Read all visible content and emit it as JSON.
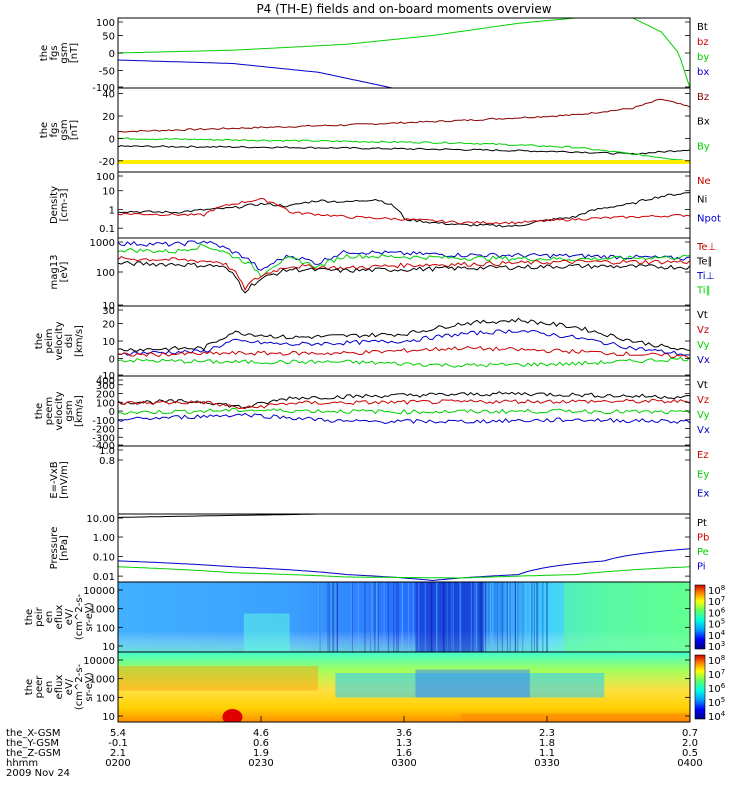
{
  "title": "P4 (TH-E) fields and on-board moments overview",
  "date": "2009 Nov 24",
  "x_axis": {
    "rows": [
      {
        "name": "the_X-GSM",
        "values": [
          "5.4",
          "4.6",
          "3.6",
          "2.3",
          "0.7"
        ]
      },
      {
        "name": "the_Y-GSM",
        "values": [
          "-0.1",
          "0.6",
          "1.3",
          "1.8",
          "2.0"
        ]
      },
      {
        "name": "the_Z-GSM",
        "values": [
          "2.1",
          "1.9",
          "1.6",
          "1.1",
          "0.5"
        ]
      },
      {
        "name": "hhmm",
        "values": [
          "0200",
          "0230",
          "0300",
          "0330",
          "0400"
        ]
      }
    ]
  },
  "colors": {
    "black": "#000000",
    "red": "#cc0000",
    "green": "#00d000",
    "blue": "#0000cc",
    "darkred": "#8b0000",
    "yellow": "#ffee00"
  },
  "chart_data": [
    {
      "type": "line",
      "ylabel": [
        "the",
        "fgs",
        "gsm",
        "[nT]"
      ],
      "ylim": [
        -100,
        100
      ],
      "yticks": [
        "100",
        "50",
        "0",
        "-50",
        "-100"
      ],
      "legend": [
        "Bt",
        "bz",
        "by",
        "bx"
      ],
      "series": [
        {
          "name": "by",
          "color": "#00d000",
          "x": [
            0.0,
            0.2,
            0.4,
            0.55,
            0.7,
            0.8
          ],
          "y": [
            0,
            8,
            25,
            50,
            85,
            100
          ]
        },
        {
          "name": "bx",
          "color": "#0000cc",
          "x": [
            0.0,
            0.2,
            0.35,
            0.48
          ],
          "y": [
            -20,
            -30,
            -55,
            -100
          ]
        },
        {
          "name": "Bt",
          "color": "#00d000",
          "x": [
            0.9,
            0.95,
            0.98,
            1.0
          ],
          "y": [
            100,
            60,
            0,
            -100
          ]
        }
      ]
    },
    {
      "type": "line",
      "ylabel": [
        "the",
        "fgs",
        "gsm",
        "[nT]"
      ],
      "ylim": [
        -30,
        45
      ],
      "yticks": [
        "40",
        "20",
        "0",
        "-20"
      ],
      "legend": [
        "Bz",
        "Bx",
        "By"
      ],
      "series": [
        {
          "name": "Bz",
          "color": "#8b0000",
          "x": [
            0.0,
            0.2,
            0.4,
            0.6,
            0.8,
            0.9,
            0.95,
            1.0
          ],
          "y": [
            6,
            9,
            12,
            16,
            21,
            27,
            35,
            28
          ]
        },
        {
          "name": "Bx",
          "color": "#000000",
          "x": [
            0.0,
            0.3,
            0.6,
            0.8,
            0.9,
            1.0
          ],
          "y": [
            -7,
            -8,
            -10,
            -12,
            -14,
            -10
          ]
        },
        {
          "name": "By",
          "color": "#00d000",
          "x": [
            0.0,
            0.3,
            0.6,
            0.8,
            0.9,
            1.0
          ],
          "y": [
            0,
            -2,
            -4,
            -8,
            -14,
            -20
          ]
        }
      ]
    },
    {
      "type": "line",
      "ylabel": [
        "Density",
        "[cm-3]"
      ],
      "yscale": "log",
      "ylim": [
        0.03,
        100
      ],
      "yticks": [
        "100",
        "10",
        "1",
        "0.1"
      ],
      "legend": [
        "Ne",
        "Ni",
        "Npot"
      ],
      "series": [
        {
          "name": "Ni",
          "color": "#000000",
          "x": [
            0.0,
            0.1,
            0.2,
            0.25,
            0.3,
            0.35,
            0.4,
            0.45,
            0.5,
            0.55,
            0.6,
            0.7,
            0.8,
            0.9,
            1.0
          ],
          "y": [
            0.8,
            0.7,
            1.2,
            2.0,
            1.5,
            3.0,
            2.5,
            3.5,
            0.3,
            0.2,
            0.15,
            0.13,
            0.4,
            2.0,
            8.0
          ]
        },
        {
          "name": "Ne",
          "color": "#cc0000",
          "x": [
            0.0,
            0.15,
            0.22,
            0.25,
            0.3,
            0.4,
            0.5,
            0.6,
            0.7,
            0.8,
            1.0
          ],
          "y": [
            0.6,
            0.5,
            2.5,
            3.5,
            0.7,
            0.4,
            0.3,
            0.2,
            0.2,
            0.3,
            0.5
          ]
        }
      ]
    },
    {
      "type": "line",
      "ylabel": [
        "mag13",
        "[eV]"
      ],
      "yscale": "log",
      "ylim": [
        10,
        1000
      ],
      "yticks": [
        "1000",
        "100",
        "10"
      ],
      "legend": [
        "Te⊥",
        "Te∥",
        "Ti⊥",
        "Ti∥"
      ],
      "series": [
        {
          "name": "Ti⊥",
          "color": "#0000cc",
          "x": [
            0.0,
            0.1,
            0.15,
            0.2,
            0.25,
            0.3,
            0.35,
            0.4,
            0.5,
            0.6,
            0.8,
            1.0
          ],
          "y": [
            700,
            650,
            800,
            400,
            100,
            300,
            180,
            400,
            350,
            320,
            300,
            250
          ]
        },
        {
          "name": "Ti∥",
          "color": "#00d000",
          "x": [
            0.0,
            0.1,
            0.15,
            0.2,
            0.25,
            0.3,
            0.35,
            0.4,
            0.5,
            0.6,
            0.8,
            1.0
          ],
          "y": [
            450,
            400,
            600,
            300,
            80,
            250,
            140,
            300,
            280,
            260,
            240,
            280
          ]
        },
        {
          "name": "Te⊥",
          "color": "#cc0000",
          "x": [
            0.0,
            0.1,
            0.18,
            0.22,
            0.3,
            0.4,
            0.5,
            0.6,
            0.8,
            1.0
          ],
          "y": [
            250,
            230,
            200,
            30,
            150,
            130,
            160,
            170,
            200,
            200
          ]
        },
        {
          "name": "Te∥",
          "color": "#000000",
          "x": [
            0.0,
            0.1,
            0.18,
            0.22,
            0.3,
            0.4,
            0.5,
            0.6,
            0.8,
            1.0
          ],
          "y": [
            180,
            170,
            150,
            25,
            120,
            110,
            120,
            130,
            150,
            140
          ]
        }
      ]
    },
    {
      "type": "line",
      "ylabel": [
        "the",
        "peim",
        "velocity",
        "dsl",
        "[km/s]"
      ],
      "ylim": [
        -10,
        30
      ],
      "yticks": [
        "30",
        "20",
        "10",
        "0",
        "-10"
      ],
      "legend": [
        "Vt",
        "Vz",
        "Vy",
        "Vx"
      ],
      "series": [
        {
          "name": "Vt",
          "color": "#000000",
          "x": [
            0.0,
            0.15,
            0.2,
            0.3,
            0.4,
            0.5,
            0.6,
            0.7,
            0.8,
            0.9,
            1.0
          ],
          "y": [
            5,
            6,
            15,
            12,
            13,
            14,
            20,
            22,
            18,
            10,
            4
          ]
        },
        {
          "name": "Vx",
          "color": "#0000cc",
          "x": [
            0.0,
            0.15,
            0.2,
            0.3,
            0.4,
            0.5,
            0.6,
            0.7,
            0.8,
            0.9,
            1.0
          ],
          "y": [
            3,
            4,
            10,
            8,
            9,
            10,
            14,
            16,
            12,
            6,
            2
          ]
        },
        {
          "name": "Vz",
          "color": "#cc0000",
          "x": [
            0.0,
            0.2,
            0.4,
            0.6,
            0.8,
            1.0
          ],
          "y": [
            2,
            3,
            3,
            6,
            4,
            1
          ]
        },
        {
          "name": "Vy",
          "color": "#00d000",
          "x": [
            0.0,
            0.2,
            0.4,
            0.6,
            0.8,
            1.0
          ],
          "y": [
            -1,
            -2,
            -2,
            -4,
            -3,
            0
          ]
        }
      ]
    },
    {
      "type": "line",
      "ylabel": [
        "the",
        "peem",
        "velocity",
        "gsm",
        "[km/s]"
      ],
      "ylim": [
        -400,
        400
      ],
      "yticks": [
        "400",
        "300",
        "200",
        "100",
        "0",
        "-100",
        "-200",
        "-300",
        "-400"
      ],
      "legend": [
        "Vt",
        "Vz",
        "Vy",
        "Vx"
      ],
      "series": [
        {
          "name": "Vt",
          "color": "#000000",
          "x": [
            0.0,
            0.15,
            0.22,
            0.3,
            0.5,
            0.7,
            0.9,
            1.0
          ],
          "y": [
            100,
            110,
            40,
            150,
            180,
            200,
            170,
            160
          ]
        },
        {
          "name": "Vz",
          "color": "#cc0000",
          "x": [
            0.0,
            0.15,
            0.22,
            0.3,
            0.5,
            0.7,
            1.0
          ],
          "y": [
            90,
            100,
            30,
            90,
            100,
            110,
            110
          ]
        },
        {
          "name": "Vy",
          "color": "#00d000",
          "x": [
            0.0,
            0.22,
            0.5,
            0.8,
            1.0
          ],
          "y": [
            -20,
            10,
            -10,
            0,
            -20
          ]
        },
        {
          "name": "Vx",
          "color": "#0000cc",
          "x": [
            0.0,
            0.22,
            0.4,
            0.6,
            0.8,
            1.0
          ],
          "y": [
            -100,
            -40,
            -120,
            -120,
            -100,
            -120
          ]
        }
      ]
    },
    {
      "type": "line",
      "ylabel": [
        "E=-VxB",
        "[mV/m]"
      ],
      "ylim": [
        -1,
        1
      ],
      "yticks": [
        "1.0",
        "0.8"
      ],
      "legend": [
        "Ez",
        "Ey",
        "Ex"
      ],
      "series": []
    },
    {
      "type": "line",
      "ylabel": [
        "Pressure",
        "[nPa]"
      ],
      "yscale": "log",
      "ylim": [
        0.005,
        15
      ],
      "yticks": [
        "10.00",
        "1.00",
        "0.10",
        "0.01"
      ],
      "legend": [
        "Pt",
        "Pb",
        "Pe",
        "Pi"
      ],
      "series": [
        {
          "name": "Pt",
          "color": "#000000",
          "x": [
            0.0,
            0.15,
            0.3,
            0.4
          ],
          "y": [
            10,
            12,
            14,
            16
          ]
        },
        {
          "name": "Pi",
          "color": "#0000cc",
          "x": [
            0.0,
            0.2,
            0.4,
            0.55,
            0.7,
            0.85,
            1.0
          ],
          "y": [
            0.06,
            0.03,
            0.012,
            0.006,
            0.012,
            0.06,
            0.25
          ]
        },
        {
          "name": "Pe",
          "color": "#00d000",
          "x": [
            0.0,
            0.2,
            0.4,
            0.6,
            0.8,
            1.0
          ],
          "y": [
            0.03,
            0.015,
            0.009,
            0.008,
            0.012,
            0.03
          ]
        }
      ]
    },
    {
      "type": "heatmap",
      "ylabel": [
        "the",
        "peir",
        "en",
        "eflux",
        "eV/",
        "(cm^2-s-",
        "sr-eV)"
      ],
      "yscale": "log",
      "yticks": [
        "10000",
        "1000",
        "100",
        "10"
      ],
      "colorbar_ticks": [
        "10^8",
        "10^7",
        "10^6",
        "10^5",
        "10^4",
        "10^3"
      ]
    },
    {
      "type": "heatmap",
      "ylabel": [
        "the",
        "peer",
        "en",
        "eflux",
        "eV/",
        "(cm^2-s-",
        "sr-eV)"
      ],
      "yscale": "log",
      "yticks": [
        "10000",
        "1000",
        "100",
        "10"
      ],
      "colorbar_ticks": [
        "10^8",
        "10^7",
        "10^6",
        "10^5",
        "10^4"
      ]
    }
  ]
}
